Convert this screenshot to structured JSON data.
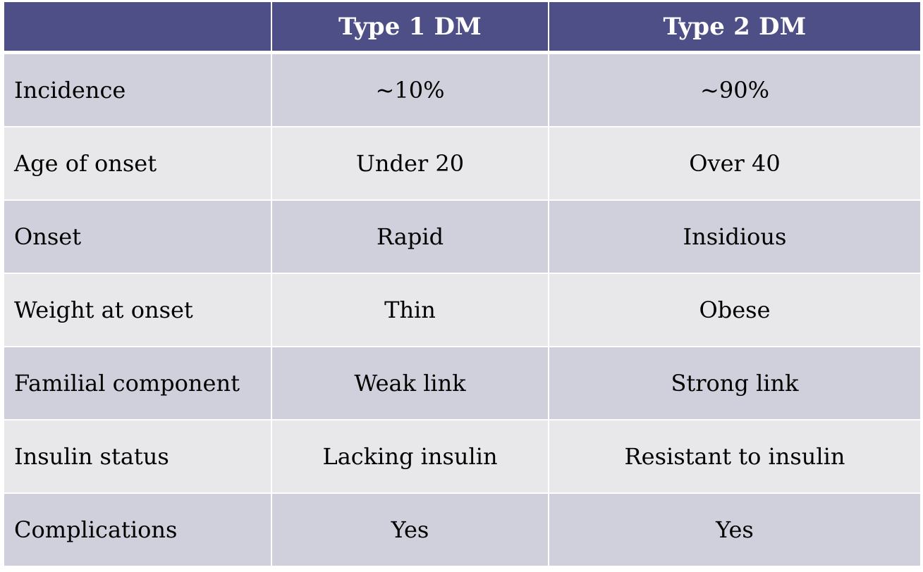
{
  "table": {
    "columns": [
      "",
      "Type 1 DM",
      "Type 2 DM"
    ],
    "rows": [
      {
        "label": "Incidence",
        "type1": "~10%",
        "type2": "~90%"
      },
      {
        "label": "Age of onset",
        "type1": "Under 20",
        "type2": "Over 40"
      },
      {
        "label": "Onset",
        "type1": "Rapid",
        "type2": "Insidious"
      },
      {
        "label": "Weight at onset",
        "type1": "Thin",
        "type2": "Obese"
      },
      {
        "label": "Familial component",
        "type1": "Weak link",
        "type2": "Strong link"
      },
      {
        "label": "Insulin status",
        "type1": "Lacking insulin",
        "type2": "Resistant to insulin"
      },
      {
        "label": "Complications",
        "type1": "Yes",
        "type2": "Yes"
      }
    ]
  },
  "colors": {
    "header_bg": "#4f4f88",
    "header_text": "#ffffff",
    "row_dark": "#d0d0dc",
    "row_light": "#e8e8ea"
  }
}
